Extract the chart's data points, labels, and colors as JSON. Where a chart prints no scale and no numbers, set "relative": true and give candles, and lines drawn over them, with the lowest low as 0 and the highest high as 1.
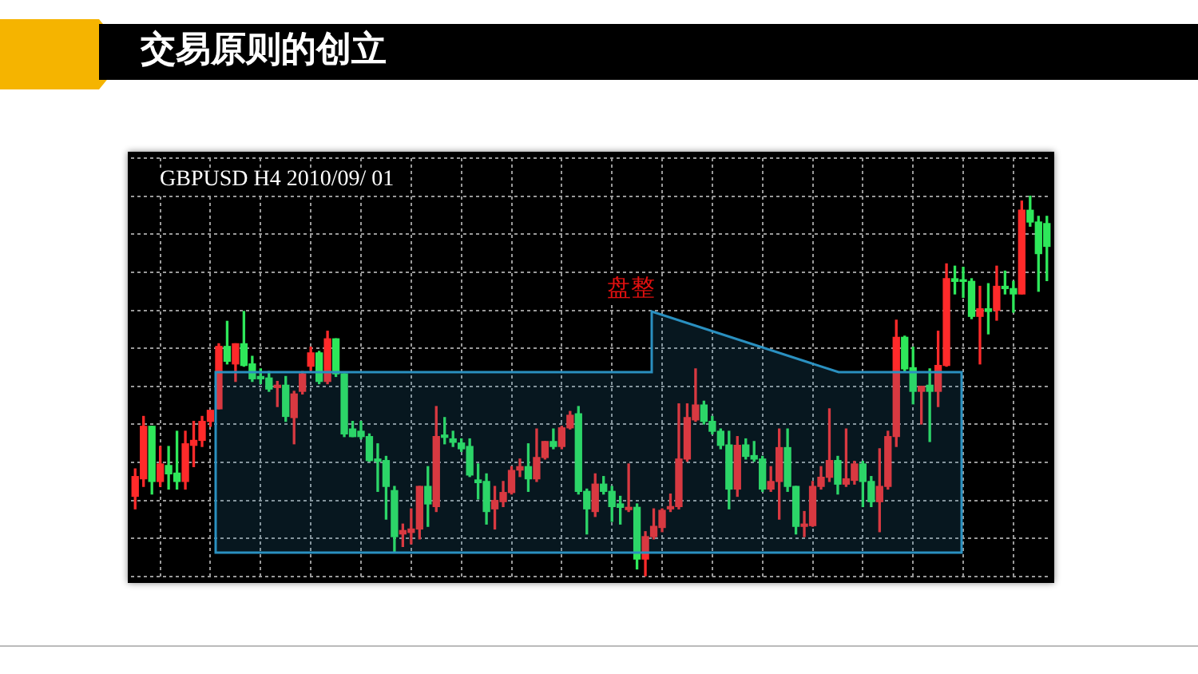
{
  "chart_data": {
    "type": "candlestick",
    "title": "交易原则的创立",
    "subtitle": "GBPUSD H4 2010/09/ 01",
    "annotations": [
      "盘整"
    ],
    "relative": true,
    "grid": true,
    "legend": false,
    "categories": [
      null,
      null,
      null,
      null,
      null,
      null,
      null,
      null,
      null,
      null,
      null,
      null,
      null,
      null,
      null,
      null,
      null,
      null,
      null,
      null,
      null,
      null,
      null,
      null,
      null,
      null,
      null,
      null,
      null,
      null,
      null,
      null,
      null,
      null,
      null,
      null,
      null,
      null,
      null,
      null,
      null,
      null,
      null,
      null,
      null,
      null,
      null,
      null,
      null,
      null,
      null,
      null,
      null,
      null,
      null,
      null,
      null,
      null,
      null,
      null,
      null,
      null,
      null,
      null,
      null,
      null,
      null,
      null,
      null,
      null,
      null,
      null,
      null,
      null,
      null,
      null,
      null,
      null,
      null,
      null,
      null,
      null,
      null,
      null,
      null,
      null,
      null,
      null,
      null,
      null,
      null,
      null,
      null,
      null,
      null,
      null,
      null,
      null,
      null,
      null,
      null,
      null,
      null,
      null,
      null,
      null,
      null,
      null,
      null,
      null
    ],
    "ohlc": [
      [
        0.211,
        0.283,
        0.178,
        0.263
      ],
      [
        0.257,
        0.421,
        0.237,
        0.395
      ],
      [
        0.395,
        0.395,
        0.217,
        0.25
      ],
      [
        0.25,
        0.342,
        0.237,
        0.296
      ],
      [
        0.292,
        0.342,
        0.23,
        0.27
      ],
      [
        0.272,
        0.382,
        0.23,
        0.25
      ],
      [
        0.25,
        0.382,
        0.23,
        0.349
      ],
      [
        0.345,
        0.408,
        0.289,
        0.358
      ],
      [
        0.358,
        0.421,
        0.342,
        0.408
      ],
      [
        0.408,
        0.437,
        0.395,
        0.437
      ],
      [
        0.441,
        0.612,
        0.441,
        0.605
      ],
      [
        0.605,
        0.671,
        0.559,
        0.566
      ],
      [
        0.559,
        0.612,
        0.513,
        0.612
      ],
      [
        0.612,
        0.697,
        0.553,
        0.555
      ],
      [
        0.559,
        0.579,
        0.513,
        0.52
      ],
      [
        0.526,
        0.546,
        0.507,
        0.52
      ],
      [
        0.522,
        0.539,
        0.487,
        0.493
      ],
      [
        0.497,
        0.513,
        0.447,
        0.503
      ],
      [
        0.503,
        0.526,
        0.408,
        0.421
      ],
      [
        0.418,
        0.487,
        0.349,
        0.48
      ],
      [
        0.487,
        0.539,
        0.48,
        0.533
      ],
      [
        0.553,
        0.603,
        0.542,
        0.588
      ],
      [
        0.588,
        0.592,
        0.507,
        0.513
      ],
      [
        0.513,
        0.645,
        0.507,
        0.625
      ],
      [
        0.625,
        0.625,
        0.526,
        0.533
      ],
      [
        0.533,
        0.533,
        0.368,
        0.375
      ],
      [
        0.388,
        0.408,
        0.368,
        0.368
      ],
      [
        0.382,
        0.408,
        0.362,
        0.368
      ],
      [
        0.368,
        0.375,
        0.303,
        0.305
      ],
      [
        0.309,
        0.349,
        0.224,
        0.303
      ],
      [
        0.305,
        0.316,
        0.151,
        0.237
      ],
      [
        0.226,
        0.237,
        0.066,
        0.105
      ],
      [
        0.112,
        0.138,
        0.079,
        0.121
      ],
      [
        0.116,
        0.178,
        0.086,
        0.125
      ],
      [
        0.125,
        0.237,
        0.099,
        0.237
      ],
      [
        0.237,
        0.289,
        0.132,
        0.191
      ],
      [
        0.184,
        0.447,
        0.171,
        0.368
      ],
      [
        0.372,
        0.418,
        0.349,
        0.366
      ],
      [
        0.362,
        0.382,
        0.342,
        0.353
      ],
      [
        0.351,
        0.362,
        0.329,
        0.336
      ],
      [
        0.342,
        0.362,
        0.263,
        0.267
      ],
      [
        0.254,
        0.296,
        0.204,
        0.247
      ],
      [
        0.25,
        0.27,
        0.138,
        0.171
      ],
      [
        0.178,
        0.237,
        0.125,
        0.2
      ],
      [
        0.197,
        0.25,
        0.184,
        0.221
      ],
      [
        0.221,
        0.289,
        0.217,
        0.279
      ],
      [
        0.28,
        0.309,
        0.263,
        0.289
      ],
      [
        0.289,
        0.349,
        0.224,
        0.257
      ],
      [
        0.257,
        0.388,
        0.25,
        0.313
      ],
      [
        0.313,
        0.355,
        0.309,
        0.355
      ],
      [
        0.355,
        0.388,
        0.336,
        0.342
      ],
      [
        0.342,
        0.395,
        0.336,
        0.391
      ],
      [
        0.391,
        0.434,
        0.388,
        0.424
      ],
      [
        0.428,
        0.447,
        0.217,
        0.224
      ],
      [
        0.224,
        0.23,
        0.112,
        0.178
      ],
      [
        0.171,
        0.27,
        0.158,
        0.243
      ],
      [
        0.243,
        0.263,
        0.217,
        0.224
      ],
      [
        0.224,
        0.237,
        0.145,
        0.184
      ],
      [
        0.191,
        0.211,
        0.138,
        0.182
      ],
      [
        0.176,
        0.296,
        0.171,
        0.182
      ],
      [
        0.182,
        0.191,
        0.02,
        0.046
      ],
      [
        0.046,
        0.118,
        0,
        0.105
      ],
      [
        0.105,
        0.178,
        0.099,
        0.132
      ],
      [
        0.129,
        0.178,
        0.118,
        0.174
      ],
      [
        0.178,
        0.217,
        0.171,
        0.184
      ],
      [
        0.184,
        0.454,
        0.178,
        0.309
      ],
      [
        0.309,
        0.454,
        0.303,
        0.418
      ],
      [
        0.412,
        0.546,
        0.408,
        0.451
      ],
      [
        0.451,
        0.461,
        0.401,
        0.408
      ],
      [
        0.408,
        0.421,
        0.375,
        0.382
      ],
      [
        0.382,
        0.388,
        0.336,
        0.345
      ],
      [
        0.346,
        0.382,
        0.178,
        0.23
      ],
      [
        0.23,
        0.368,
        0.211,
        0.345
      ],
      [
        0.346,
        0.362,
        0.309,
        0.316
      ],
      [
        0.318,
        0.355,
        0.303,
        0.309
      ],
      [
        0.309,
        0.316,
        0.224,
        0.23
      ],
      [
        0.23,
        0.289,
        0.224,
        0.25
      ],
      [
        0.25,
        0.388,
        0.151,
        0.339
      ],
      [
        0.339,
        0.388,
        0.224,
        0.237
      ],
      [
        0.237,
        0.237,
        0.112,
        0.132
      ],
      [
        0.132,
        0.171,
        0.105,
        0.138
      ],
      [
        0.134,
        0.25,
        0.132,
        0.237
      ],
      [
        0.237,
        0.289,
        0.23,
        0.261
      ],
      [
        0.261,
        0.441,
        0.25,
        0.305
      ],
      [
        0.305,
        0.316,
        0.217,
        0.243
      ],
      [
        0.243,
        0.388,
        0.237,
        0.257
      ],
      [
        0.253,
        0.303,
        0.243,
        0.296
      ],
      [
        0.296,
        0.303,
        0.184,
        0.25
      ],
      [
        0.25,
        0.263,
        0.184,
        0.197
      ],
      [
        0.197,
        0.336,
        0.118,
        0.237
      ],
      [
        0.237,
        0.382,
        0.23,
        0.368
      ],
      [
        0.368,
        0.674,
        0.342,
        0.629
      ],
      [
        0.629,
        0.632,
        0.539,
        0.546
      ],
      [
        0.549,
        0.603,
        0.454,
        0.487
      ],
      [
        0.487,
        0.5,
        0.401,
        0.5
      ],
      [
        0.503,
        0.546,
        0.355,
        0.487
      ],
      [
        0.487,
        0.645,
        0.447,
        0.555
      ],
      [
        0.555,
        0.822,
        0.553,
        0.783
      ],
      [
        0.783,
        0.816,
        0.743,
        0.776
      ],
      [
        0.779,
        0.813,
        0.734,
        0.776
      ],
      [
        0.776,
        0.783,
        0.678,
        0.684
      ],
      [
        0.684,
        0.763,
        0.559,
        0.704
      ],
      [
        0.704,
        0.77,
        0.638,
        0.697
      ],
      [
        0.7,
        0.816,
        0.674,
        0.763
      ],
      [
        0.763,
        0.803,
        0.743,
        0.757
      ],
      [
        0.757,
        0.776,
        0.695,
        0.743
      ],
      [
        0.743,
        0.987,
        0.743,
        0.963
      ],
      [
        0.963,
        1,
        0.921,
        0.932
      ],
      [
        0.932,
        0.947,
        0.75,
        0.849
      ],
      [
        0.928,
        0.947,
        0.778,
        0.868
      ]
    ],
    "colors": [
      "#ff2a2a",
      "#ff2a2a",
      "#2ee85a",
      "#ff2a2a",
      "#2ee85a",
      "#2ee85a",
      "#ff2a2a",
      "#ff2a2a",
      "#ff2a2a",
      "#ff2a2a",
      "#ff2a2a",
      "#2ee85a",
      "#ff2a2a",
      "#2ee85a",
      "#2ee85a",
      "#2ee85a",
      "#2ee85a",
      "#ff2a2a",
      "#2ee85a",
      "#ff2a2a",
      "#ff2a2a",
      "#ff2a2a",
      "#2ee85a",
      "#ff2a2a",
      "#2ee85a",
      "#2ee85a",
      "#2ee85a",
      "#2ee85a",
      "#2ee85a",
      "#2ee85a",
      "#2ee85a",
      "#2ee85a",
      "#ff2a2a",
      "#ff2a2a",
      "#ff2a2a",
      "#2ee85a",
      "#ff2a2a",
      "#2ee85a",
      "#2ee85a",
      "#2ee85a",
      "#2ee85a",
      "#2ee85a",
      "#2ee85a",
      "#ff2a2a",
      "#ff2a2a",
      "#ff2a2a",
      "#ff2a2a",
      "#2ee85a",
      "#ff2a2a",
      "#ff2a2a",
      "#2ee85a",
      "#ff2a2a",
      "#ff2a2a",
      "#2ee85a",
      "#2ee85a",
      "#ff2a2a",
      "#2ee85a",
      "#2ee85a",
      "#2ee85a",
      "#ff2a2a",
      "#2ee85a",
      "#ff2a2a",
      "#ff2a2a",
      "#ff2a2a",
      "#ff2a2a",
      "#ff2a2a",
      "#ff2a2a",
      "#ff2a2a",
      "#2ee85a",
      "#2ee85a",
      "#2ee85a",
      "#2ee85a",
      "#ff2a2a",
      "#2ee85a",
      "#2ee85a",
      "#2ee85a",
      "#ff2a2a",
      "#ff2a2a",
      "#2ee85a",
      "#2ee85a",
      "#ff2a2a",
      "#ff2a2a",
      "#ff2a2a",
      "#ff2a2a",
      "#2ee85a",
      "#ff2a2a",
      "#ff2a2a",
      "#2ee85a",
      "#2ee85a",
      "#ff2a2a",
      "#ff2a2a",
      "#ff2a2a",
      "#2ee85a",
      "#2ee85a",
      "#ff2a2a",
      "#2ee85a",
      "#ff2a2a",
      "#ff2a2a",
      "#2ee85a",
      "#2ee85a",
      "#2ee85a",
      "#ff2a2a",
      "#2ee85a",
      "#ff2a2a",
      "#2ee85a",
      "#2ee85a",
      "#ff2a2a",
      "#2ee85a",
      "#2ee85a",
      "#2ee85a"
    ]
  }
}
